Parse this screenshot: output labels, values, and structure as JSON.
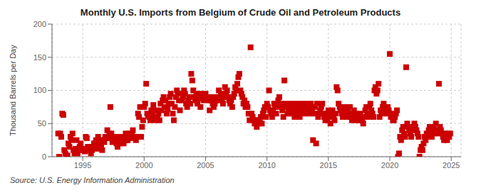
{
  "chart_data": {
    "type": "scatter",
    "title": "Monthly U.S. Imports from Belgium of Crude Oil and Petroleum Products",
    "ylabel": "Thousand Barrels per Day",
    "source": "Source: U.S. Energy Information Administration",
    "color": "#cc0000",
    "marker": "square",
    "grid": true,
    "xlim": [
      1992.5,
      2025.8
    ],
    "xticks": [
      1995,
      2000,
      2005,
      2010,
      2015,
      2020,
      2025
    ],
    "ylim": [
      0,
      200
    ],
    "yticks": [
      0,
      50,
      100,
      150,
      200
    ],
    "x": [
      1993,
      1993.0833333333333,
      1993.1666666666667,
      1993.25,
      1993.3333333333333,
      1993.4166666666667,
      1993.5,
      1993.5833333333333,
      1993.6666666666667,
      1993.75,
      1993.8333333333333,
      1993.9166666666667,
      1994,
      1994.0833333333333,
      1994.1666666666667,
      1994.25,
      1994.3333333333333,
      1994.4166666666667,
      1994.5,
      1994.5833333333333,
      1994.6666666666667,
      1994.75,
      1994.8333333333333,
      1994.9166666666667,
      1995,
      1995.0833333333333,
      1995.1666666666667,
      1995.25,
      1995.3333333333333,
      1995.4166666666667,
      1995.5,
      1995.5833333333333,
      1995.6666666666667,
      1995.75,
      1995.8333333333333,
      1995.9166666666667,
      1996,
      1996.0833333333333,
      1996.1666666666667,
      1996.25,
      1996.3333333333333,
      1996.4166666666667,
      1996.5,
      1996.5833333333333,
      1996.6666666666667,
      1996.75,
      1996.8333333333333,
      1996.9166666666667,
      1997,
      1997.0833333333333,
      1997.1666666666667,
      1997.25,
      1997.3333333333333,
      1997.4166666666667,
      1997.5,
      1997.5833333333333,
      1997.6666666666667,
      1997.75,
      1997.8333333333333,
      1997.9166666666667,
      1998,
      1998.0833333333333,
      1998.1666666666667,
      1998.25,
      1998.3333333333333,
      1998.4166666666667,
      1998.5,
      1998.5833333333333,
      1998.6666666666667,
      1998.75,
      1998.8333333333333,
      1998.9166666666667,
      1999,
      1999.0833333333333,
      1999.1666666666667,
      1999.25,
      1999.3333333333333,
      1999.4166666666667,
      1999.5,
      1999.5833333333333,
      1999.6666666666667,
      1999.75,
      1999.8333333333333,
      1999.9166666666667,
      2000,
      2000.0833333333333,
      2000.1666666666667,
      2000.25,
      2000.3333333333333,
      2000.4166666666667,
      2000.5,
      2000.5833333333333,
      2000.6666666666667,
      2000.75,
      2000.8333333333333,
      2000.9166666666667,
      2001,
      2001.0833333333333,
      2001.1666666666667,
      2001.25,
      2001.3333333333333,
      2001.4166666666667,
      2001.5,
      2001.5833333333333,
      2001.6666666666667,
      2001.75,
      2001.8333333333333,
      2001.9166666666667,
      2002,
      2002.0833333333333,
      2002.1666666666667,
      2002.25,
      2002.3333333333333,
      2002.4166666666667,
      2002.5,
      2002.5833333333333,
      2002.6666666666667,
      2002.75,
      2002.8333333333333,
      2002.9166666666667,
      2003,
      2003.0833333333333,
      2003.1666666666667,
      2003.25,
      2003.3333333333333,
      2003.4166666666667,
      2003.5,
      2003.5833333333333,
      2003.6666666666667,
      2003.75,
      2003.8333333333333,
      2003.9166666666667,
      2004,
      2004.0833333333333,
      2004.1666666666667,
      2004.25,
      2004.3333333333333,
      2004.4166666666667,
      2004.5,
      2004.5833333333333,
      2004.6666666666667,
      2004.75,
      2004.8333333333333,
      2004.9166666666667,
      2005,
      2005.0833333333333,
      2005.1666666666667,
      2005.25,
      2005.3333333333333,
      2005.4166666666667,
      2005.5,
      2005.5833333333333,
      2005.6666666666667,
      2005.75,
      2005.8333333333333,
      2005.9166666666667,
      2006,
      2006.0833333333333,
      2006.1666666666667,
      2006.25,
      2006.3333333333333,
      2006.4166666666667,
      2006.5,
      2006.5833333333333,
      2006.6666666666667,
      2006.75,
      2006.8333333333333,
      2006.9166666666667,
      2007,
      2007.0833333333333,
      2007.1666666666667,
      2007.25,
      2007.3333333333333,
      2007.4166666666667,
      2007.5,
      2007.5833333333333,
      2007.6666666666667,
      2007.75,
      2007.8333333333333,
      2007.9166666666667,
      2008,
      2008.0833333333333,
      2008.1666666666667,
      2008.25,
      2008.3333333333333,
      2008.4166666666667,
      2008.5,
      2008.5833333333333,
      2008.6666666666667,
      2008.75,
      2008.8333333333333,
      2008.9166666666667,
      2009,
      2009.0833333333333,
      2009.1666666666667,
      2009.25,
      2009.3333333333333,
      2009.4166666666667,
      2009.5,
      2009.5833333333333,
      2009.6666666666667,
      2009.75,
      2009.8333333333333,
      2009.9166666666667,
      2010,
      2010.0833333333333,
      2010.1666666666667,
      2010.25,
      2010.3333333333333,
      2010.4166666666667,
      2010.5,
      2010.5833333333333,
      2010.6666666666667,
      2010.75,
      2010.8333333333333,
      2010.9166666666667,
      2011,
      2011.0833333333333,
      2011.1666666666667,
      2011.25,
      2011.3333333333333,
      2011.4166666666667,
      2011.5,
      2011.5833333333333,
      2011.6666666666667,
      2011.75,
      2011.8333333333333,
      2011.9166666666667,
      2012,
      2012.0833333333333,
      2012.1666666666667,
      2012.25,
      2012.3333333333333,
      2012.4166666666667,
      2012.5,
      2012.5833333333333,
      2012.6666666666667,
      2012.75,
      2012.8333333333333,
      2012.9166666666667,
      2013,
      2013.0833333333333,
      2013.1666666666667,
      2013.25,
      2013.3333333333333,
      2013.4166666666667,
      2013.5,
      2013.5833333333333,
      2013.6666666666667,
      2013.75,
      2013.8333333333333,
      2013.9166666666667,
      2014,
      2014.0833333333333,
      2014.1666666666667,
      2014.25,
      2014.3333333333333,
      2014.4166666666667,
      2014.5,
      2014.5833333333333,
      2014.6666666666667,
      2014.75,
      2014.8333333333333,
      2014.9166666666667,
      2015,
      2015.0833333333333,
      2015.1666666666667,
      2015.25,
      2015.3333333333333,
      2015.4166666666667,
      2015.5,
      2015.5833333333333,
      2015.6666666666667,
      2015.75,
      2015.8333333333333,
      2015.9166666666667,
      2016,
      2016.0833333333333,
      2016.1666666666667,
      2016.25,
      2016.3333333333333,
      2016.4166666666667,
      2016.5,
      2016.5833333333333,
      2016.6666666666667,
      2016.75,
      2016.8333333333333,
      2016.9166666666667,
      2017,
      2017.0833333333333,
      2017.1666666666667,
      2017.25,
      2017.3333333333333,
      2017.4166666666667,
      2017.5,
      2017.5833333333333,
      2017.6666666666667,
      2017.75,
      2017.8333333333333,
      2017.9166666666667,
      2018,
      2018.0833333333333,
      2018.1666666666667,
      2018.25,
      2018.3333333333333,
      2018.4166666666667,
      2018.5,
      2018.5833333333333,
      2018.6666666666667,
      2018.75,
      2018.8333333333333,
      2018.9166666666667,
      2019,
      2019.0833333333333,
      2019.1666666666667,
      2019.25,
      2019.3333333333333,
      2019.4166666666667,
      2019.5,
      2019.5833333333333,
      2019.6666666666667,
      2019.75,
      2019.8333333333333,
      2019.9166666666667,
      2020,
      2020.0833333333333,
      2020.1666666666667,
      2020.25,
      2020.3333333333333,
      2020.4166666666667,
      2020.5,
      2020.5833333333333,
      2020.6666666666667,
      2020.75,
      2020.8333333333333,
      2020.9166666666667,
      2021,
      2021.0833333333333,
      2021.1666666666667,
      2021.25,
      2021.3333333333333,
      2021.4166666666667,
      2021.5,
      2021.5833333333333,
      2021.6666666666667,
      2021.75,
      2021.8333333333333,
      2021.9166666666667,
      2022,
      2022.0833333333333,
      2022.1666666666667,
      2022.25,
      2022.3333333333333,
      2022.4166666666667,
      2022.5,
      2022.5833333333333,
      2022.6666666666667,
      2022.75,
      2022.8333333333333,
      2022.9166666666667,
      2023,
      2023.0833333333333,
      2023.1666666666667,
      2023.25,
      2023.3333333333333,
      2023.4166666666667,
      2023.5,
      2023.5833333333333,
      2023.6666666666667,
      2023.75,
      2023.8333333333333,
      2023.9166666666667,
      2024,
      2024.0833333333333,
      2024.1666666666667,
      2024.25,
      2024.3333333333333,
      2024.4166666666667,
      2024.5,
      2024.5833333333333,
      2024.6666666666667,
      2024.75,
      2024.8333333333333,
      2024.9166666666667
    ],
    "values": [
      35,
      0,
      35,
      30,
      65,
      63,
      10,
      5,
      0,
      2,
      20,
      15,
      30,
      25,
      35,
      10,
      5,
      12,
      25,
      5,
      12,
      15,
      20,
      10,
      10,
      12,
      8,
      30,
      28,
      15,
      10,
      12,
      5,
      10,
      15,
      20,
      20,
      25,
      12,
      30,
      18,
      25,
      15,
      10,
      25,
      22,
      30,
      28,
      40,
      28,
      35,
      75,
      35,
      22,
      30,
      25,
      28,
      20,
      15,
      30,
      25,
      20,
      30,
      25,
      20,
      30,
      35,
      25,
      25,
      30,
      35,
      28,
      35,
      40,
      30,
      30,
      25,
      30,
      65,
      60,
      75,
      30,
      45,
      55,
      75,
      80,
      110,
      65,
      62,
      60,
      55,
      70,
      65,
      78,
      60,
      55,
      70,
      60,
      65,
      55,
      80,
      70,
      85,
      90,
      75,
      85,
      65,
      72,
      80,
      90,
      95,
      80,
      65,
      55,
      75,
      90,
      100,
      95,
      85,
      70,
      95,
      85,
      90,
      100,
      95,
      80,
      75,
      85,
      90,
      80,
      125,
      115,
      100,
      90,
      85,
      95,
      80,
      95,
      88,
      75,
      95,
      90,
      85,
      88,
      95,
      90,
      88,
      85,
      70,
      85,
      90,
      80,
      75,
      80,
      85,
      90,
      90,
      100,
      85,
      95,
      88,
      80,
      90,
      105,
      95,
      100,
      90,
      85,
      80,
      85,
      75,
      90,
      95,
      105,
      100,
      110,
      120,
      125,
      100,
      95,
      90,
      80,
      85,
      75,
      80,
      75,
      65,
      55,
      165,
      65,
      60,
      55,
      50,
      55,
      45,
      55,
      50,
      55,
      60,
      50,
      65,
      70,
      75,
      60,
      80,
      75,
      100,
      70,
      65,
      60,
      70,
      80,
      75,
      65,
      80,
      85,
      90,
      75,
      80,
      70,
      60,
      115,
      75,
      80,
      65,
      70,
      65,
      75,
      80,
      70,
      65,
      60,
      75,
      80,
      70,
      65,
      60,
      75,
      80,
      70,
      65,
      70,
      75,
      80,
      70,
      65,
      75,
      80,
      70,
      25,
      65,
      75,
      20,
      80,
      60,
      65,
      70,
      75,
      80,
      65,
      60,
      55,
      65,
      55,
      70,
      60,
      50,
      65,
      70,
      60,
      55,
      65,
      105,
      100,
      80,
      75,
      70,
      65,
      60,
      70,
      75,
      65,
      60,
      70,
      65,
      75,
      60,
      55,
      65,
      70,
      60,
      55,
      65,
      60,
      55,
      65,
      60,
      55,
      50,
      60,
      70,
      75,
      65,
      60,
      75,
      80,
      70,
      65,
      60,
      100,
      105,
      95,
      100,
      110,
      60,
      70,
      65,
      75,
      80,
      75,
      70,
      65,
      75,
      70,
      155,
      60,
      65,
      55,
      55,
      60,
      65,
      70,
      0,
      5,
      30,
      25,
      40,
      45,
      35,
      30,
      135,
      50,
      45,
      40,
      35,
      30,
      40,
      45,
      50,
      45,
      40,
      35,
      30,
      0,
      10,
      15,
      10,
      20,
      30,
      25,
      35,
      30,
      40,
      45,
      35,
      30,
      40,
      45,
      35,
      50,
      40,
      35,
      110,
      45,
      40,
      35,
      30,
      25,
      35,
      30,
      25,
      35,
      30,
      35
    ]
  }
}
